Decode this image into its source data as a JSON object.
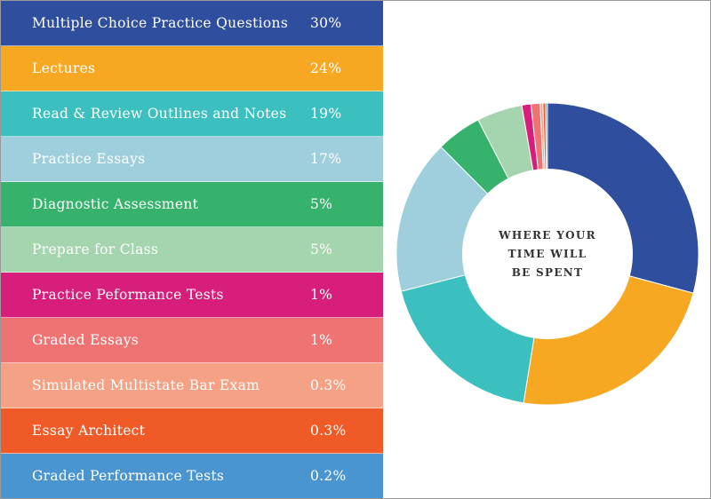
{
  "chart_data": {
    "type": "pie",
    "style": "donut",
    "center_title_lines": [
      "WHERE YOUR",
      "TIME WILL",
      "BE SPENT"
    ],
    "slices": [
      {
        "label": "Multiple Choice Practice Questions",
        "display": "30%",
        "value": 30,
        "color": "#2f4f9e"
      },
      {
        "label": "Lectures",
        "display": "24%",
        "value": 24,
        "color": "#f7a823"
      },
      {
        "label": "Read & Review Outlines and Notes",
        "display": "19%",
        "value": 19,
        "color": "#3cbfbf"
      },
      {
        "label": "Practice Essays",
        "display": "17%",
        "value": 17,
        "color": "#9fcfdc"
      },
      {
        "label": "Diagnostic Assessment",
        "display": "5%",
        "value": 5,
        "color": "#37b26c"
      },
      {
        "label": "Prepare for Class",
        "display": "5%",
        "value": 5,
        "color": "#a4d5ae"
      },
      {
        "label": "Practice Peformance Tests",
        "display": "1%",
        "value": 1,
        "color": "#d81e7b"
      },
      {
        "label": "Graded Essays",
        "display": "1%",
        "value": 1,
        "color": "#f07373"
      },
      {
        "label": "Simulated Multistate Bar Exam",
        "display": "0.3%",
        "value": 0.3,
        "color": "#f4a185"
      },
      {
        "label": "Essay Architect",
        "display": "0.3%",
        "value": 0.3,
        "color": "#ef5a27"
      },
      {
        "label": "Graded Performance Tests",
        "display": "0.2%",
        "value": 0.2,
        "color": "#4a95d0"
      }
    ]
  }
}
